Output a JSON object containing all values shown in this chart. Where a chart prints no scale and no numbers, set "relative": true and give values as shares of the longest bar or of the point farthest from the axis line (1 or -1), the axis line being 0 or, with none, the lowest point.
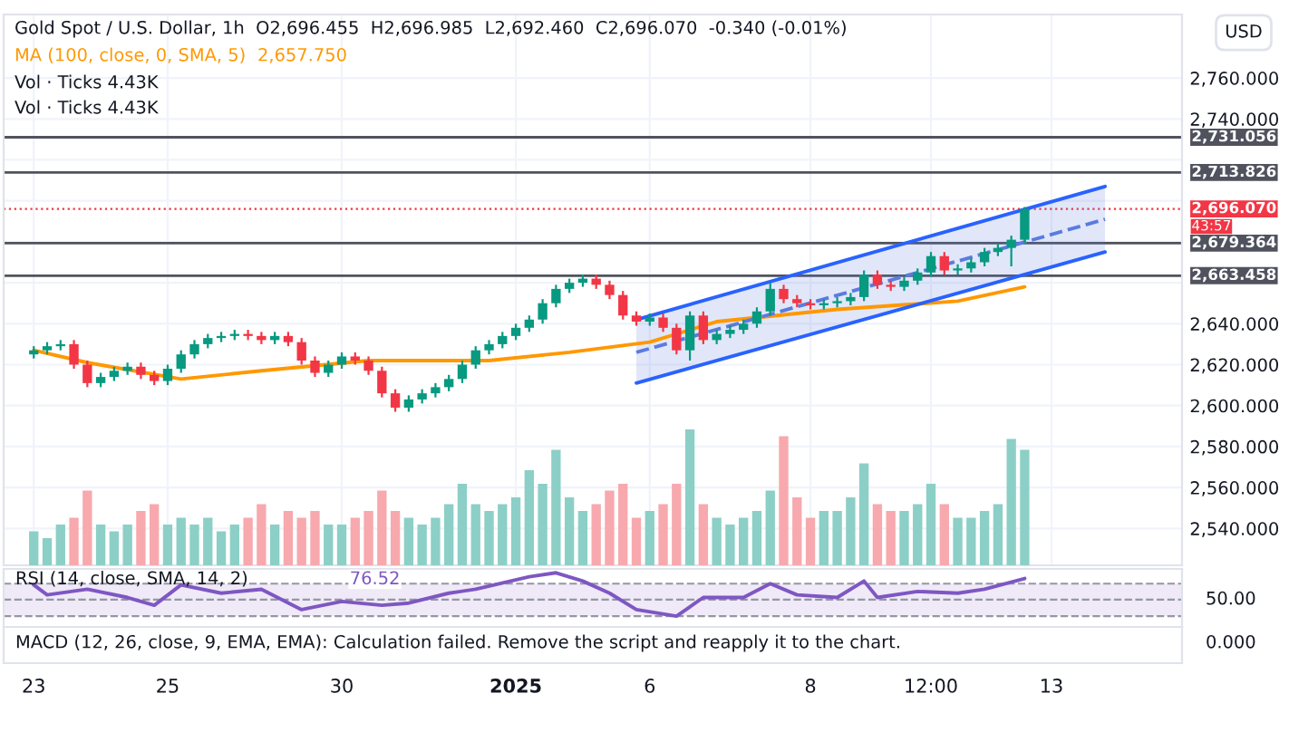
{
  "chart_data": [
    {
      "type": "candlestick",
      "title": "Gold Spot / U.S. Dollar, 1h  O2,696.455  H2,696.985  L2,692.460  C2,696.070  -0.340 (-0.01%)",
      "categories": [
        null,
        null,
        null,
        null,
        null,
        null,
        null,
        null,
        null,
        null,
        null,
        null,
        null,
        null,
        null,
        null,
        null,
        null,
        null,
        null,
        null,
        null,
        null,
        null,
        null,
        null,
        null,
        null,
        null,
        null,
        null,
        null,
        null,
        null,
        null,
        null,
        null,
        null,
        null,
        null,
        null,
        null,
        null,
        null,
        null,
        null,
        null,
        null,
        null,
        null,
        null,
        null,
        null,
        null,
        null,
        null,
        null,
        null,
        null,
        null,
        null,
        null,
        null,
        null,
        null,
        null,
        null,
        null,
        null,
        null,
        null,
        null,
        null,
        null,
        null,
        null,
        null,
        null,
        null,
        null,
        null
      ],
      "ohlc": [
        [
          2625,
          2629,
          2623,
          2627
        ],
        [
          2627,
          2631,
          2625,
          2629
        ],
        [
          2629,
          2632,
          2627,
          2630
        ],
        [
          2630,
          2632,
          2618,
          2620
        ],
        [
          2620,
          2622,
          2609,
          2611
        ],
        [
          2611,
          2616,
          2609,
          2614
        ],
        [
          2614,
          2619,
          2612,
          2617
        ],
        [
          2617,
          2621,
          2615,
          2619
        ],
        [
          2619,
          2621,
          2613,
          2615
        ],
        [
          2615,
          2617,
          2610,
          2612
        ],
        [
          2612,
          2620,
          2610,
          2618
        ],
        [
          2618,
          2627,
          2616,
          2625
        ],
        [
          2625,
          2632,
          2623,
          2630
        ],
        [
          2630,
          2635,
          2628,
          2633
        ],
        [
          2633,
          2636,
          2631,
          2634
        ],
        [
          2634,
          2637,
          2632,
          2635
        ],
        [
          2635,
          2637,
          2632,
          2634
        ],
        [
          2634,
          2636,
          2630,
          2632
        ],
        [
          2632,
          2636,
          2630,
          2634
        ],
        [
          2634,
          2636,
          2629,
          2631
        ],
        [
          2631,
          2633,
          2620,
          2622
        ],
        [
          2622,
          2624,
          2614,
          2616
        ],
        [
          2616,
          2622,
          2614,
          2620
        ],
        [
          2620,
          2626,
          2618,
          2624
        ],
        [
          2624,
          2626,
          2620,
          2622
        ],
        [
          2622,
          2624,
          2615,
          2617
        ],
        [
          2617,
          2619,
          2604,
          2606
        ],
        [
          2606,
          2608,
          2597,
          2599
        ],
        [
          2599,
          2605,
          2597,
          2603
        ],
        [
          2603,
          2608,
          2601,
          2606
        ],
        [
          2606,
          2611,
          2604,
          2609
        ],
        [
          2609,
          2615,
          2607,
          2613
        ],
        [
          2613,
          2622,
          2611,
          2620
        ],
        [
          2620,
          2629,
          2618,
          2627
        ],
        [
          2627,
          2632,
          2625,
          2630
        ],
        [
          2630,
          2636,
          2628,
          2634
        ],
        [
          2634,
          2640,
          2632,
          2638
        ],
        [
          2638,
          2644,
          2636,
          2642
        ],
        [
          2642,
          2652,
          2640,
          2650
        ],
        [
          2650,
          2659,
          2648,
          2657
        ],
        [
          2657,
          2662,
          2655,
          2660
        ],
        [
          2660,
          2664,
          2658,
          2662
        ],
        [
          2662,
          2664,
          2657,
          2659
        ],
        [
          2659,
          2661,
          2652,
          2654
        ],
        [
          2654,
          2656,
          2642,
          2644
        ],
        [
          2644,
          2646,
          2639,
          2641
        ],
        [
          2641,
          2645,
          2639,
          2643
        ],
        [
          2643,
          2645,
          2636,
          2638
        ],
        [
          2638,
          2640,
          2625,
          2627
        ],
        [
          2627,
          2646,
          2622,
          2644
        ],
        [
          2644,
          2646,
          2630,
          2632
        ],
        [
          2632,
          2637,
          2630,
          2635
        ],
        [
          2635,
          2639,
          2633,
          2637
        ],
        [
          2637,
          2642,
          2635,
          2640
        ],
        [
          2640,
          2648,
          2638,
          2646
        ],
        [
          2646,
          2660,
          2644,
          2657
        ],
        [
          2657,
          2659,
          2650,
          2652
        ],
        [
          2652,
          2654,
          2648,
          2650
        ],
        [
          2650,
          2652,
          2647,
          2649
        ],
        [
          2649,
          2652,
          2647,
          2650
        ],
        [
          2650,
          2653,
          2648,
          2651
        ],
        [
          2651,
          2655,
          2649,
          2653
        ],
        [
          2653,
          2666,
          2651,
          2664
        ],
        [
          2664,
          2666,
          2657,
          2659
        ],
        [
          2659,
          2661,
          2656,
          2658
        ],
        [
          2658,
          2663,
          2656,
          2661
        ],
        [
          2661,
          2667,
          2659,
          2665
        ],
        [
          2665,
          2675,
          2663,
          2673
        ],
        [
          2673,
          2675,
          2664,
          2666
        ],
        [
          2666,
          2669,
          2664,
          2667
        ],
        [
          2667,
          2672,
          2665,
          2670
        ],
        [
          2670,
          2677,
          2668,
          2675
        ],
        [
          2675,
          2679,
          2673,
          2677
        ],
        [
          2677,
          2683,
          2668,
          2681
        ],
        [
          2681,
          2697,
          2679,
          2696
        ],
        null,
        null,
        null,
        null,
        null,
        null
      ],
      "colors": [
        "#089981",
        "#089981",
        "#089981",
        "#f23645",
        "#f23645",
        "#089981",
        "#089981",
        "#089981",
        "#f23645",
        "#f23645",
        "#089981",
        "#089981",
        "#089981",
        "#089981",
        "#089981",
        "#089981",
        "#f23645",
        "#f23645",
        "#089981",
        "#f23645",
        "#f23645",
        "#f23645",
        "#089981",
        "#089981",
        "#f23645",
        "#f23645",
        "#f23645",
        "#f23645",
        "#089981",
        "#089981",
        "#089981",
        "#089981",
        "#089981",
        "#089981",
        "#089981",
        "#089981",
        "#089981",
        "#089981",
        "#089981",
        "#089981",
        "#089981",
        "#089981",
        "#f23645",
        "#f23645",
        "#f23645",
        "#f23645",
        "#089981",
        "#f23645",
        "#f23645",
        "#089981",
        "#f23645",
        "#089981",
        "#089981",
        "#089981",
        "#089981",
        "#089981",
        "#f23645",
        "#f23645",
        "#f23645",
        "#089981",
        "#089981",
        "#089981",
        "#089981",
        "#f23645",
        "#f23645",
        "#089981",
        "#089981",
        "#089981",
        "#f23645",
        "#089981",
        "#089981",
        "#089981",
        "#089981",
        "#089981",
        "#089981",
        null,
        null,
        null,
        null,
        null,
        null
      ],
      "series": [
        {
          "type": "line",
          "name": "MA (100, close, 0, SMA, 5)",
          "color": "#ff9800",
          "values": [
            2627,
            null,
            null,
            null,
            2621,
            null,
            null,
            null,
            null,
            null,
            null,
            2613,
            null,
            null,
            null,
            null,
            null,
            2617,
            null,
            null,
            null,
            null,
            null,
            null,
            null,
            2622,
            null,
            null,
            null,
            null,
            null,
            null,
            null,
            null,
            2622,
            null,
            null,
            null,
            null,
            null,
            2626,
            null,
            null,
            null,
            null,
            null,
            2631,
            null,
            null,
            null,
            null,
            2641,
            null,
            null,
            null,
            null,
            null,
            null,
            null,
            null,
            2647,
            null,
            null,
            null,
            null,
            null,
            null,
            null,
            null,
            2651,
            null,
            null,
            null,
            null,
            2658,
            null,
            null,
            null,
            null,
            null,
            null
          ]
        },
        {
          "type": "line",
          "color": "#2962ff",
          "values": [
            null,
            null,
            null,
            null,
            null,
            null,
            null,
            null,
            null,
            null,
            null,
            null,
            null,
            null,
            null,
            null,
            null,
            null,
            null,
            null,
            null,
            null,
            null,
            null,
            null,
            null,
            null,
            null,
            null,
            null,
            null,
            null,
            null,
            null,
            null,
            null,
            null,
            null,
            null,
            null,
            null,
            null,
            null,
            null,
            null,
            2642,
            null,
            null,
            null,
            null,
            null,
            null,
            null,
            null,
            null,
            null,
            null,
            null,
            null,
            null,
            null,
            null,
            null,
            null,
            null,
            null,
            null,
            null,
            null,
            null,
            null,
            null,
            null,
            null,
            null,
            null,
            null,
            null,
            null,
            null,
            2707
          ]
        },
        {
          "type": "line",
          "color": "#2962ff",
          "values": [
            null,
            null,
            null,
            null,
            null,
            null,
            null,
            null,
            null,
            null,
            null,
            null,
            null,
            null,
            null,
            null,
            null,
            null,
            null,
            null,
            null,
            null,
            null,
            null,
            null,
            null,
            null,
            null,
            null,
            null,
            null,
            null,
            null,
            null,
            null,
            null,
            null,
            null,
            null,
            null,
            null,
            null,
            null,
            null,
            null,
            2611,
            null,
            null,
            null,
            null,
            null,
            null,
            null,
            null,
            null,
            null,
            null,
            null,
            null,
            null,
            null,
            null,
            null,
            null,
            null,
            null,
            null,
            null,
            null,
            null,
            null,
            null,
            null,
            null,
            null,
            null,
            null,
            null,
            null,
            null,
            2675
          ]
        },
        {
          "type": "line",
          "color": "#5b7be0",
          "line_style": "dashed",
          "values": [
            null,
            null,
            null,
            null,
            null,
            null,
            null,
            null,
            null,
            null,
            null,
            null,
            null,
            null,
            null,
            null,
            null,
            null,
            null,
            null,
            null,
            null,
            null,
            null,
            null,
            null,
            null,
            null,
            null,
            null,
            null,
            null,
            null,
            null,
            null,
            null,
            null,
            null,
            null,
            null,
            null,
            null,
            null,
            null,
            null,
            2626,
            null,
            null,
            null,
            null,
            null,
            null,
            null,
            null,
            null,
            null,
            null,
            null,
            null,
            null,
            null,
            null,
            null,
            null,
            null,
            null,
            null,
            null,
            null,
            null,
            null,
            null,
            null,
            null,
            null,
            null,
            null,
            null,
            null,
            null,
            2691
          ],
          "lower": [
            null,
            null,
            null,
            null,
            null,
            null,
            null,
            null,
            null,
            null,
            null,
            null,
            null,
            null,
            null,
            null,
            null,
            null,
            null,
            null,
            null,
            null,
            null,
            null,
            null,
            null,
            null,
            null,
            null,
            null,
            null,
            null,
            null,
            null,
            null,
            null,
            null,
            null,
            null,
            null,
            null,
            null,
            null,
            null,
            null,
            2611,
            null,
            null,
            null,
            null,
            null,
            null,
            null,
            null,
            null,
            null,
            null,
            null,
            null,
            null,
            null,
            null,
            null,
            null,
            null,
            null,
            null,
            null,
            null,
            null,
            null,
            null,
            null,
            null,
            null,
            null,
            null,
            null,
            null,
            null,
            2675
          ],
          "upper": [
            null,
            null,
            null,
            null,
            null,
            null,
            null,
            null,
            null,
            null,
            null,
            null,
            null,
            null,
            null,
            null,
            null,
            null,
            null,
            null,
            null,
            null,
            null,
            null,
            null,
            null,
            null,
            null,
            null,
            null,
            null,
            null,
            null,
            null,
            null,
            null,
            null,
            null,
            null,
            null,
            null,
            null,
            null,
            null,
            null,
            2642,
            null,
            null,
            null,
            null,
            null,
            null,
            null,
            null,
            null,
            null,
            null,
            null,
            null,
            null,
            null,
            null,
            null,
            null,
            null,
            null,
            null,
            null,
            null,
            null,
            null,
            null,
            null,
            null,
            null,
            null,
            null,
            null,
            null,
            null,
            2707
          ]
        }
      ],
      "ylim": [
        2522,
        2791
      ],
      "yticks": [
        {
          "value": 2540,
          "label": "2,540.000"
        },
        {
          "value": 2560,
          "label": "2,560.000"
        },
        {
          "value": 2580,
          "label": "2,580.000"
        },
        {
          "value": 2600,
          "label": "2,600.000"
        },
        {
          "value": 2620,
          "label": "2,620.000"
        },
        {
          "value": 2640,
          "label": "2,640.000"
        },
        {
          "value": 2660,
          "label": null
        },
        {
          "value": 2680,
          "label": null
        },
        {
          "value": 2700,
          "label": null
        },
        {
          "value": 2720,
          "label": null
        },
        {
          "value": 2740,
          "label": "2,740.000"
        },
        {
          "value": 2760,
          "label": "2,760.000"
        }
      ],
      "ref_lines": [
        {
          "axis": "y",
          "value": 2731.056,
          "label": "2,731.056",
          "color": "#50535e",
          "line_style": "solid"
        },
        {
          "axis": "y",
          "value": 2713.826,
          "label": "2,713.826",
          "color": "#50535e",
          "line_style": "solid"
        },
        {
          "axis": "y",
          "value": 2679.364,
          "label": "2,679.364",
          "color": "#50535e",
          "line_style": "solid"
        },
        {
          "axis": "y",
          "value": 2663.458,
          "label": "2,663.458",
          "color": "#50535e",
          "line_style": "solid"
        },
        {
          "axis": "y",
          "value": 2696.07,
          "label": "2,696.070",
          "color": "#f23645",
          "line_style": "dotted"
        }
      ],
      "annotations": [
        "2,657.750",
        "43:57",
        "USD"
      ],
      "grid": true,
      "tick_labels": "y"
    },
    {
      "type": "bar",
      "relative": true,
      "categories": [
        null,
        null,
        null,
        null,
        null,
        null,
        null,
        null,
        null,
        null,
        null,
        null,
        null,
        null,
        null,
        null,
        null,
        null,
        null,
        null,
        null,
        null,
        null,
        null,
        null,
        null,
        null,
        null,
        null,
        null,
        null,
        null,
        null,
        null,
        null,
        null,
        null,
        null,
        null,
        null,
        null,
        null,
        null,
        null,
        null,
        null,
        null,
        null,
        null,
        null,
        null,
        null,
        null,
        null,
        null,
        null,
        null,
        null,
        null,
        null,
        null,
        null,
        null,
        null,
        null,
        null,
        null,
        null,
        null,
        null,
        null,
        null,
        null,
        null,
        null,
        null,
        null,
        null,
        null,
        null,
        null
      ],
      "values": [
        0.25,
        0.2,
        0.3,
        0.35,
        0.55,
        0.3,
        0.25,
        0.3,
        0.4,
        0.45,
        0.3,
        0.35,
        0.3,
        0.35,
        0.25,
        0.3,
        0.35,
        0.45,
        0.3,
        0.4,
        0.35,
        0.4,
        0.3,
        0.3,
        0.35,
        0.4,
        0.55,
        0.4,
        0.35,
        0.3,
        0.35,
        0.45,
        0.6,
        0.45,
        0.4,
        0.45,
        0.5,
        0.7,
        0.6,
        0.85,
        0.5,
        0.4,
        0.45,
        0.55,
        0.6,
        0.35,
        0.4,
        0.45,
        0.6,
        1.0,
        0.45,
        0.35,
        0.3,
        0.35,
        0.4,
        0.55,
        0.95,
        0.5,
        0.35,
        0.4,
        0.4,
        0.5,
        0.75,
        0.45,
        0.4,
        0.4,
        0.45,
        0.6,
        0.45,
        0.35,
        0.35,
        0.4,
        0.45,
        0.93,
        0.85,
        null,
        null,
        null,
        null,
        null,
        null
      ],
      "colors": [
        "#8ccfc7",
        "#8ccfc7",
        "#8ccfc7",
        "#f7a9ae",
        "#f7a9ae",
        "#8ccfc7",
        "#8ccfc7",
        "#8ccfc7",
        "#f7a9ae",
        "#f7a9ae",
        "#8ccfc7",
        "#8ccfc7",
        "#8ccfc7",
        "#8ccfc7",
        "#8ccfc7",
        "#8ccfc7",
        "#f7a9ae",
        "#f7a9ae",
        "#8ccfc7",
        "#f7a9ae",
        "#f7a9ae",
        "#f7a9ae",
        "#8ccfc7",
        "#8ccfc7",
        "#f7a9ae",
        "#f7a9ae",
        "#f7a9ae",
        "#f7a9ae",
        "#8ccfc7",
        "#8ccfc7",
        "#8ccfc7",
        "#8ccfc7",
        "#8ccfc7",
        "#8ccfc7",
        "#8ccfc7",
        "#8ccfc7",
        "#8ccfc7",
        "#8ccfc7",
        "#8ccfc7",
        "#8ccfc7",
        "#8ccfc7",
        "#8ccfc7",
        "#f7a9ae",
        "#f7a9ae",
        "#f7a9ae",
        "#f7a9ae",
        "#8ccfc7",
        "#f7a9ae",
        "#f7a9ae",
        "#8ccfc7",
        "#f7a9ae",
        "#8ccfc7",
        "#8ccfc7",
        "#8ccfc7",
        "#8ccfc7",
        "#8ccfc7",
        "#f7a9ae",
        "#f7a9ae",
        "#f7a9ae",
        "#8ccfc7",
        "#8ccfc7",
        "#8ccfc7",
        "#8ccfc7",
        "#f7a9ae",
        "#f7a9ae",
        "#8ccfc7",
        "#8ccfc7",
        "#8ccfc7",
        "#f7a9ae",
        "#8ccfc7",
        "#8ccfc7",
        "#8ccfc7",
        "#8ccfc7",
        "#8ccfc7",
        "#8ccfc7",
        null,
        null,
        null,
        null,
        null,
        null
      ],
      "annotations": [
        "Vol · Ticks 4.43K",
        "Vol · Ticks 4.43K"
      ],
      "tick_labels": false
    },
    {
      "type": "line",
      "relative": true,
      "title": "RSI (14, close, SMA, 14, 2)",
      "categories": [
        null,
        null,
        null,
        null,
        null,
        null,
        null,
        null,
        null,
        null,
        null,
        null,
        null,
        null,
        null,
        null,
        null,
        null,
        null,
        null,
        null,
        null,
        null,
        null,
        null,
        null,
        null,
        null,
        null,
        null,
        null,
        null,
        null,
        null,
        null,
        null,
        null,
        null,
        null,
        null,
        null,
        null,
        null,
        null,
        null,
        null,
        null,
        null,
        null,
        null,
        null,
        null,
        null,
        null,
        null,
        null,
        null,
        null,
        null,
        null,
        null,
        null,
        null,
        null,
        null,
        null,
        null,
        null,
        null,
        null,
        null,
        null,
        null,
        null,
        null,
        null,
        null,
        null,
        null,
        null,
        null
      ],
      "series": [
        {
          "color": "#7e57c2",
          "values": [
            0.72,
            0.49,
            null,
            null,
            0.62,
            null,
            null,
            0.43,
            null,
            0.25,
            null,
            0.72,
            null,
            null,
            0.53,
            null,
            null,
            0.62,
            null,
            null,
            0.15,
            null,
            null,
            0.34,
            null,
            null,
            0.25,
            null,
            0.3,
            null,
            null,
            0.53,
            null,
            0.62,
            null,
            null,
            null,
            0.91,
            null,
            1,
            null,
            0.81,
            null,
            0.53,
            null,
            0.15,
            null,
            null,
            0,
            null,
            0.43,
            null,
            null,
            0.43,
            null,
            0.75,
            null,
            0.49,
            null,
            null,
            0.43,
            null,
            0.81,
            0.43,
            null,
            null,
            0.57,
            null,
            null,
            0.53,
            null,
            0.62,
            null,
            null,
            0.87,
            null,
            null,
            null,
            null,
            null,
            null
          ]
        }
      ],
      "ref_lines": [
        {
          "axis": "y",
          "value": 0.75,
          "color": "#9598a1",
          "line_style": "dashed"
        },
        {
          "axis": "y",
          "value": 0.38,
          "color": "#9598a1",
          "line_style": "dashed"
        },
        {
          "axis": "y",
          "value": 0,
          "color": "#9598a1",
          "line_style": "dashed"
        }
      ],
      "bands": [
        {
          "axis": "y",
          "from": 0,
          "to": 0.75,
          "color": "#efe9f8"
        }
      ],
      "annotations": [
        "76.52",
        "50.00"
      ],
      "tick_labels": false
    },
    {
      "type": "other",
      "title": "MACD (12, 26, close, 9, EMA, EMA): Calculation failed. Remove the script and reapply it to the chart.",
      "categories": [
        "23",
        null,
        null,
        null,
        null,
        null,
        null,
        null,
        null,
        null,
        "25",
        null,
        null,
        null,
        null,
        null,
        null,
        null,
        null,
        null,
        null,
        null,
        null,
        "30",
        null,
        null,
        null,
        null,
        null,
        null,
        null,
        null,
        null,
        null,
        null,
        null,
        "2025",
        null,
        null,
        null,
        null,
        null,
        null,
        null,
        null,
        null,
        "6",
        null,
        null,
        null,
        null,
        null,
        null,
        null,
        null,
        null,
        null,
        null,
        "8",
        null,
        null,
        null,
        null,
        null,
        null,
        null,
        null,
        "12:00",
        null,
        null,
        null,
        null,
        null,
        null,
        null,
        null,
        "13",
        null,
        null,
        null,
        null
      ],
      "annotations": [
        "0.000"
      ]
    }
  ]
}
